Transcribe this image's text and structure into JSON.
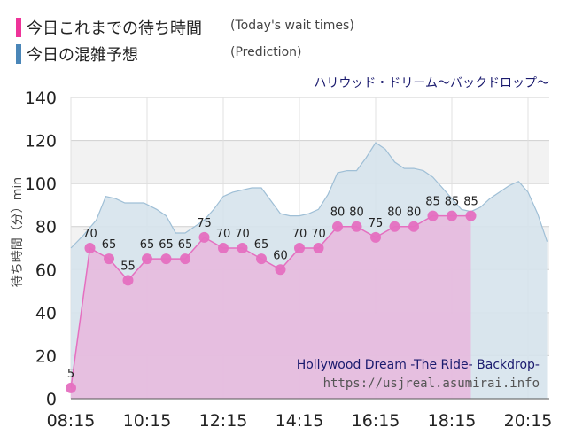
{
  "legend": {
    "today_jp": "今日これまでの待ち時間",
    "today_en": "(Today's wait times)",
    "pred_jp": "今日の混雑予想",
    "pred_en": "(Prediction)"
  },
  "colors": {
    "today": "#ee3399",
    "today_fill": "#e7b7dd",
    "today_point": "#e56fc0",
    "pred": "#4a86b8",
    "pred_fill": "#d6e3ec",
    "pred_line": "#9fbfd6",
    "title": "#1a1a6e"
  },
  "chart_data": {
    "type": "area",
    "title": "ハリウッド・ドリーム〜バックドロップ〜",
    "subtitle": "Hollywood Dream -The Ride- Backdrop-",
    "source": "https://usjreal.asumirai.info",
    "ylabel": "待ち時間（分）min",
    "ylim": [
      0,
      140
    ],
    "yticks": [
      0,
      20,
      40,
      60,
      80,
      100,
      120,
      140
    ],
    "xticks": [
      "08:15",
      "10:15",
      "12:15",
      "14:15",
      "16:15",
      "18:15",
      "20:15"
    ],
    "series": [
      {
        "name": "今日これまでの待ち時間",
        "times": [
          "08:15",
          "08:45",
          "09:15",
          "09:45",
          "10:15",
          "10:45",
          "11:15",
          "11:45",
          "12:15",
          "12:45",
          "13:15",
          "13:45",
          "14:15",
          "14:45",
          "15:15",
          "15:45",
          "16:15",
          "16:45",
          "17:15",
          "17:45",
          "18:15",
          "18:45"
        ],
        "values": [
          5,
          70,
          65,
          55,
          65,
          65,
          65,
          75,
          70,
          70,
          65,
          60,
          70,
          70,
          80,
          80,
          75,
          80,
          80,
          85,
          85,
          85
        ]
      },
      {
        "name": "今日の混雑予想",
        "times": [
          "08:15",
          "08:35",
          "08:55",
          "09:10",
          "09:25",
          "09:40",
          "09:55",
          "10:10",
          "10:30",
          "10:45",
          "11:00",
          "11:15",
          "11:30",
          "11:45",
          "12:00",
          "12:15",
          "12:30",
          "12:45",
          "13:00",
          "13:15",
          "13:30",
          "13:45",
          "14:00",
          "14:15",
          "14:30",
          "14:45",
          "15:00",
          "15:15",
          "15:30",
          "15:45",
          "16:00",
          "16:15",
          "16:30",
          "16:45",
          "17:00",
          "17:15",
          "17:30",
          "17:45",
          "18:00",
          "18:15",
          "18:30",
          "18:45",
          "19:00",
          "19:15",
          "19:30",
          "19:45",
          "20:00",
          "20:15",
          "20:30",
          "20:45"
        ],
        "values": [
          70,
          76,
          83,
          94,
          93,
          91,
          91,
          91,
          88,
          85,
          77,
          77,
          80,
          83,
          88,
          94,
          96,
          97,
          98,
          98,
          92,
          86,
          85,
          85,
          86,
          88,
          95,
          105,
          106,
          106,
          112,
          119,
          116,
          110,
          107,
          107,
          106,
          103,
          98,
          93,
          88,
          87,
          89,
          93,
          96,
          99,
          101,
          96,
          86,
          73
        ]
      }
    ]
  }
}
